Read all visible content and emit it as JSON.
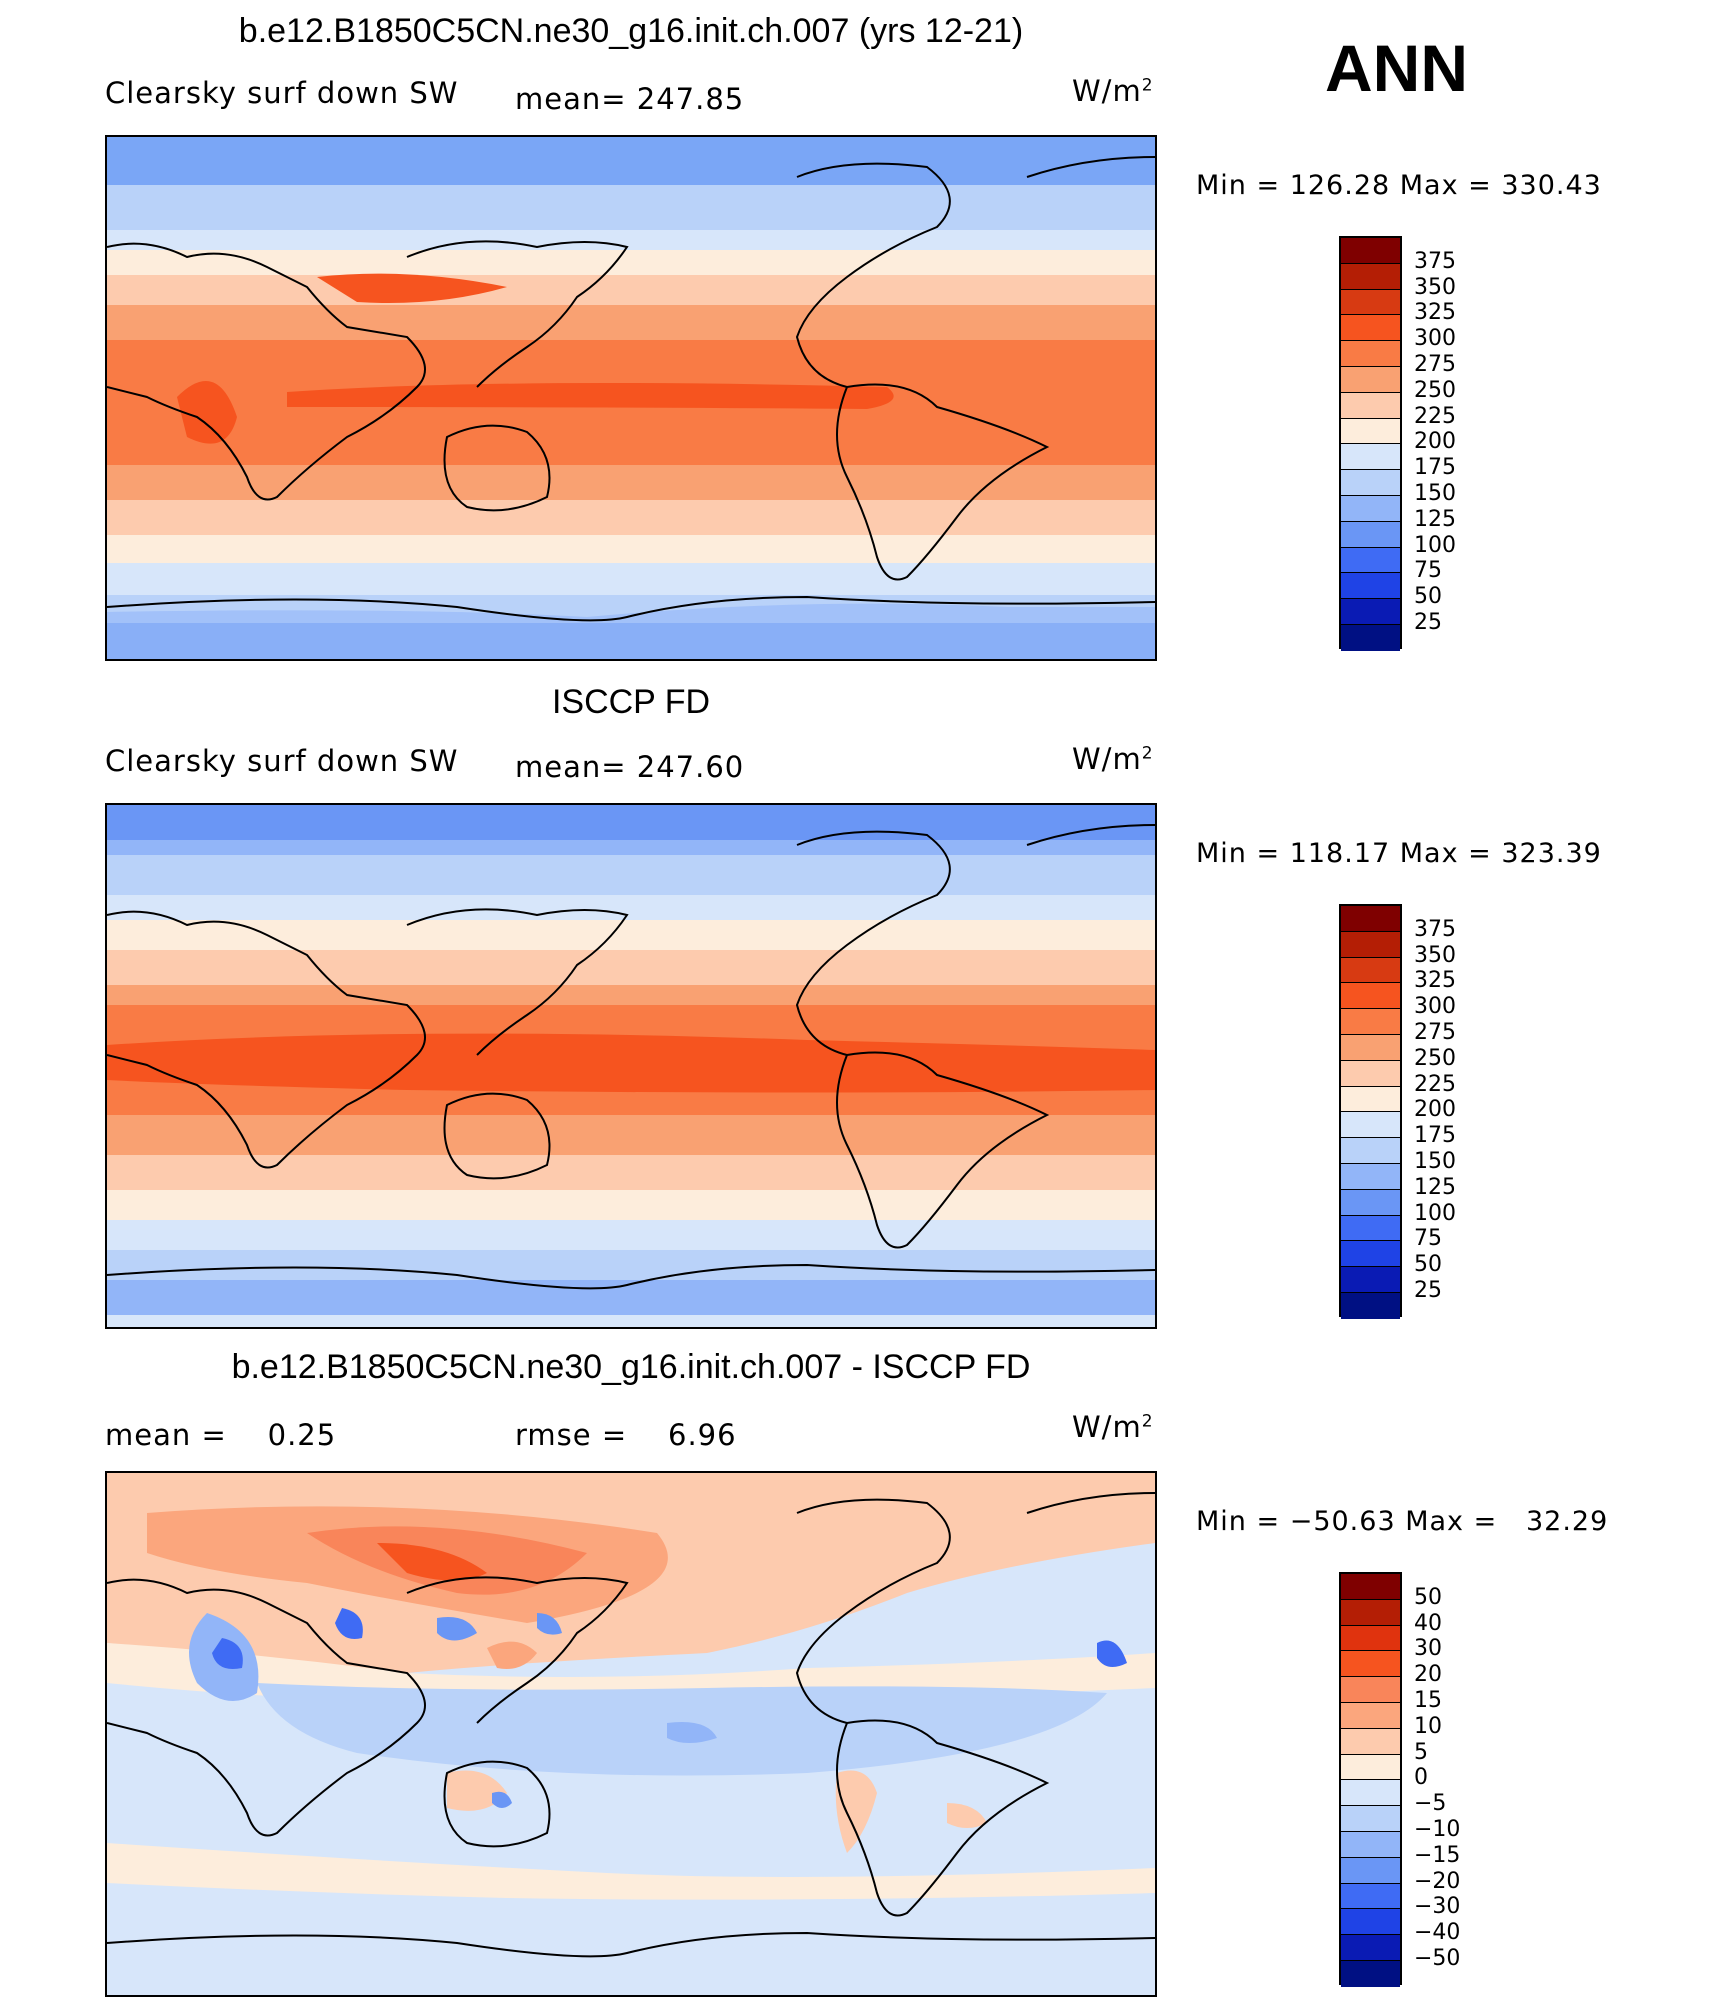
{
  "season": "ANN",
  "units": "W/m",
  "units_sup": "2",
  "panels": [
    {
      "title": "b.e12.B1850C5CN.ne30_g16.init.ch.007 (yrs 12-21)",
      "left_label": "Clearsky surf down SW",
      "stat_label": "mean= 247.85",
      "minmax": "Min = 126.28 Max = 330.43",
      "colorbar_ticks": [
        "375",
        "350",
        "325",
        "300",
        "275",
        "250",
        "225",
        "200",
        "175",
        "150",
        "125",
        "100",
        "75",
        "50",
        "25"
      ]
    },
    {
      "title": "ISCCP FD",
      "left_label": "Clearsky surf down SW",
      "stat_label": "mean= 247.60",
      "minmax": "Min = 118.17 Max = 323.39",
      "colorbar_ticks": [
        "375",
        "350",
        "325",
        "300",
        "275",
        "250",
        "225",
        "200",
        "175",
        "150",
        "125",
        "100",
        "75",
        "50",
        "25"
      ]
    },
    {
      "title": "b.e12.B1850C5CN.ne30_g16.init.ch.007 - ISCCP FD",
      "left_label": "mean =    0.25",
      "stat_label": "rmse =    6.96",
      "minmax": "Min = −50.63 Max =   32.29",
      "colorbar_ticks": [
        "50",
        "40",
        "30",
        "20",
        "15",
        "10",
        "5",
        "0",
        "−5",
        "−10",
        "−15",
        "−20",
        "−30",
        "−40",
        "−50"
      ]
    }
  ],
  "colors": {
    "abs_scale": [
      "#7f0000",
      "#b41e05",
      "#d73a12",
      "#f6541f",
      "#f97b45",
      "#f9a172",
      "#fdcbae",
      "#fdeddc",
      "#d7e6fa",
      "#b9d2f9",
      "#92b5f8",
      "#6a96f5",
      "#3f6bf4",
      "#1f43e6",
      "#0a1bb4",
      "#001083"
    ],
    "diff_scale": [
      "#7f0000",
      "#b41e05",
      "#e0330e",
      "#f6541f",
      "#f9855a",
      "#fba67d",
      "#fdcbae",
      "#fdeddc",
      "#d7e6fa",
      "#b9d2f9",
      "#92b5f8",
      "#6a96f5",
      "#3f6bf4",
      "#1f43e6",
      "#0a1bb4",
      "#001083"
    ]
  }
}
